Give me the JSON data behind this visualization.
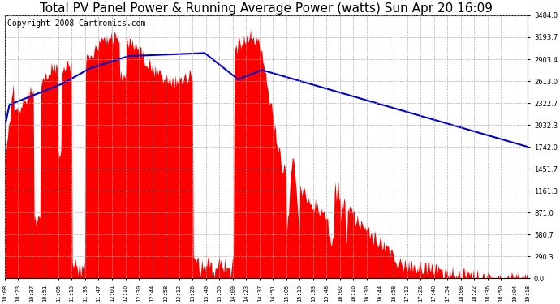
{
  "title": "Total PV Panel Power & Running Average Power (watts) Sun Apr 20 16:09",
  "copyright": "Copyright 2008 Cartronics.com",
  "ylabel_right": [
    "0.0",
    "290.3",
    "580.7",
    "871.0",
    "1161.3",
    "1451.7",
    "1742.0",
    "2032.3",
    "2322.7",
    "2613.0",
    "2903.4",
    "3193.7",
    "3484.0"
  ],
  "y_max": 3484.0,
  "y_min": 0.0,
  "bar_color": "#FF0000",
  "line_color": "#0000CC",
  "background_color": "#FFFFFF",
  "grid_color": "#AAAAAA",
  "title_fontsize": 11,
  "copyright_fontsize": 7,
  "x_tick_labels": [
    "10:08",
    "10:23",
    "10:37",
    "10:51",
    "11:05",
    "11:19",
    "11:33",
    "11:47",
    "12:01",
    "12:16",
    "12:30",
    "12:44",
    "12:58",
    "13:12",
    "13:26",
    "13:40",
    "13:55",
    "14:09",
    "14:23",
    "14:37",
    "14:51",
    "15:05",
    "15:19",
    "15:33",
    "15:48",
    "16:02",
    "16:16",
    "16:30",
    "16:44",
    "16:58",
    "17:12",
    "17:26",
    "17:40",
    "17:54",
    "18:08",
    "18:22",
    "18:36",
    "18:50",
    "19:04",
    "19:18"
  ]
}
